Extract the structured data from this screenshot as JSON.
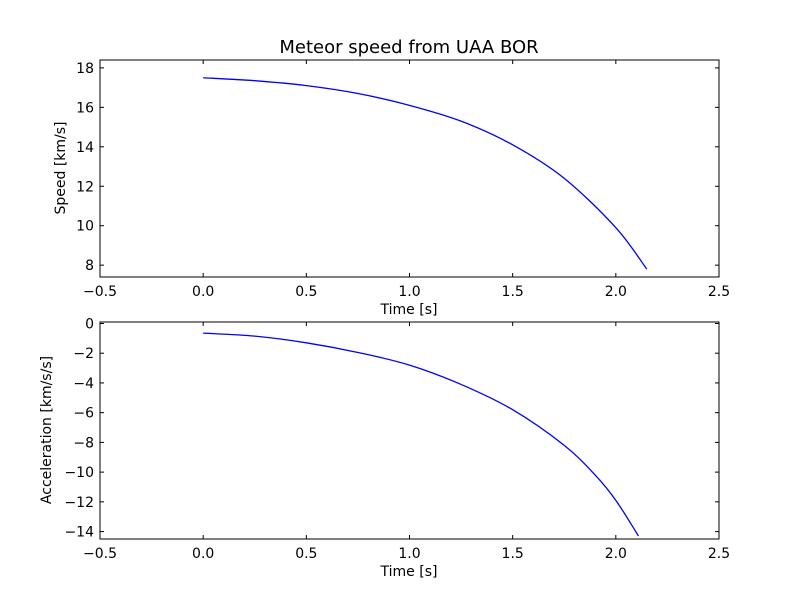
{
  "chart_data": [
    {
      "type": "line",
      "title": "Meteor speed from  UAA BOR",
      "xlabel": "Time [s]",
      "ylabel": "Speed [km/s]",
      "xlim": [
        -0.5,
        2.5
      ],
      "ylim": [
        7.4,
        18.4
      ],
      "xticks": [
        "−0.5",
        "0.0",
        "0.5",
        "1.0",
        "1.5",
        "2.0",
        "2.5"
      ],
      "xtick_values": [
        -0.5,
        0.0,
        0.5,
        1.0,
        1.5,
        2.0,
        2.5
      ],
      "yticks": [
        "8",
        "10",
        "12",
        "14",
        "16",
        "18"
      ],
      "ytick_values": [
        8,
        10,
        12,
        14,
        16,
        18
      ],
      "grid": false,
      "line_color": "#0000ff",
      "series": [
        {
          "x": [
            0.0,
            0.25,
            0.5,
            0.75,
            1.0,
            1.25,
            1.5,
            1.75,
            2.0,
            2.15
          ],
          "y": [
            17.5,
            17.35,
            17.1,
            16.7,
            16.1,
            15.3,
            14.1,
            12.4,
            9.9,
            7.8
          ]
        }
      ]
    },
    {
      "type": "line",
      "title": "",
      "xlabel": "Time [s]",
      "ylabel": "Acceleration [km/s/s]",
      "xlim": [
        -0.5,
        2.5
      ],
      "ylim": [
        -14.5,
        0.1
      ],
      "xticks": [
        "−0.5",
        "0.0",
        "0.5",
        "1.0",
        "1.5",
        "2.0",
        "2.5"
      ],
      "xtick_values": [
        -0.5,
        0.0,
        0.5,
        1.0,
        1.5,
        2.0,
        2.5
      ],
      "yticks": [
        "0",
        "−2",
        "−4",
        "−6",
        "−8",
        "−10",
        "−12",
        "−14"
      ],
      "ytick_values": [
        0,
        -2,
        -4,
        -6,
        -8,
        -10,
        -12,
        -14
      ],
      "grid": false,
      "line_color": "#0000ff",
      "series": [
        {
          "x": [
            0.0,
            0.25,
            0.5,
            0.75,
            1.0,
            1.25,
            1.5,
            1.75,
            1.9,
            2.0,
            2.11
          ],
          "y": [
            -0.65,
            -0.85,
            -1.3,
            -1.95,
            -2.8,
            -4.1,
            -5.8,
            -8.2,
            -10.2,
            -11.9,
            -14.3
          ]
        }
      ]
    }
  ]
}
